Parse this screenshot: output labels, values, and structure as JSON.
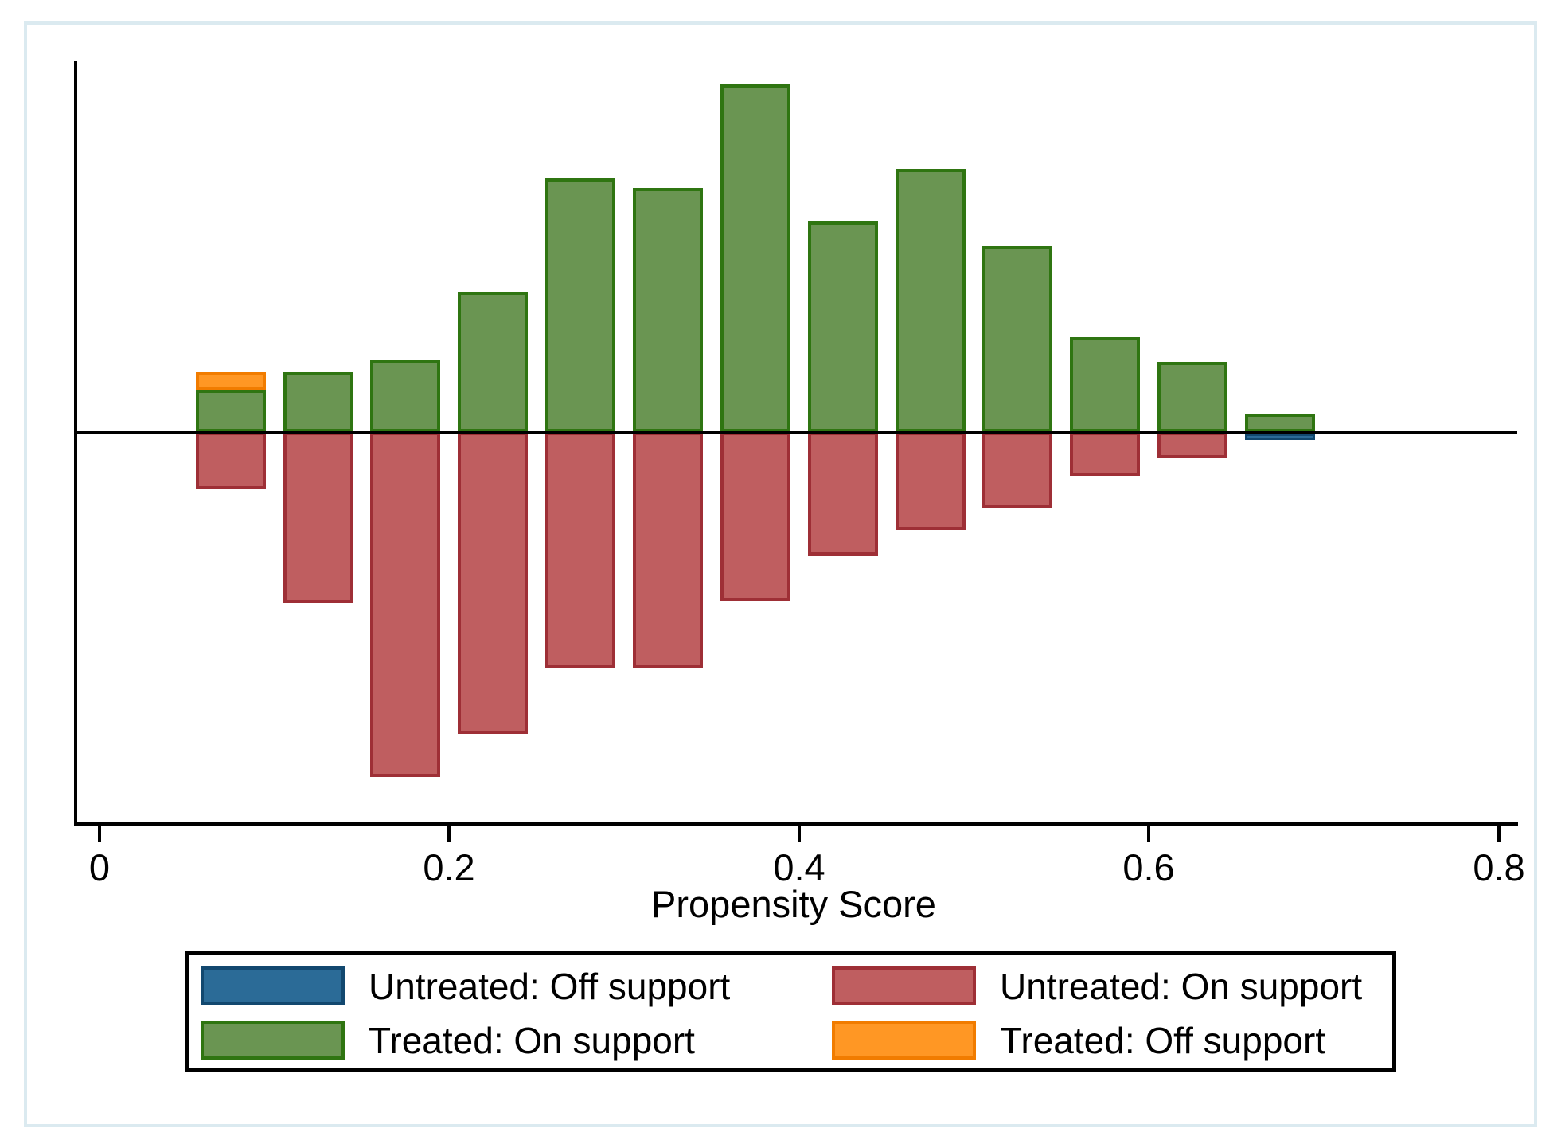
{
  "xaxis": {
    "label": "Propensity Score",
    "ticks": [
      {
        "value": 0,
        "label": "0"
      },
      {
        "value": 0.2,
        "label": "0.2"
      },
      {
        "value": 0.4,
        "label": "0.4"
      },
      {
        "value": 0.6,
        "label": "0.6"
      },
      {
        "value": 0.8,
        "label": "0.8"
      }
    ]
  },
  "legend": {
    "entries": [
      {
        "label": "Untreated: Off support",
        "color_key": "untreated_off"
      },
      {
        "label": "Untreated: On support",
        "color_key": "untreated_on"
      },
      {
        "label": "Treated: On support",
        "color_key": "treated_on"
      },
      {
        "label": "Treated: Off support",
        "color_key": "treated_off"
      }
    ]
  },
  "colors": {
    "treated_on": "#6a9552",
    "treated_on_border": "#2f7511",
    "untreated_on": "#bf5e60",
    "untreated_on_border": "#9e2f36",
    "treated_off": "#ff9724",
    "treated_off_border": "#f17c00",
    "untreated_off": "#2b6b97",
    "untreated_off_border": "#12486f",
    "axis": "#000000",
    "frame": "#dbeaf0"
  },
  "chart_data": {
    "type": "bar",
    "title": "",
    "xlabel": "Propensity Score",
    "ylabel": "",
    "grid": false,
    "legend_position": "bottom",
    "xlim": [
      0,
      0.82
    ],
    "bin_width": 0.05,
    "x_bin_centers": [
      0.075,
      0.125,
      0.175,
      0.225,
      0.275,
      0.325,
      0.375,
      0.425,
      0.475,
      0.525,
      0.575,
      0.625,
      0.675
    ],
    "orientation_note": "Treated series drawn upward from zero line; Untreated series drawn downward (mirrored histogram). Values are estimated densities; no y-axis ticks are shown in the figure.",
    "series": [
      {
        "name": "Treated: On support",
        "direction": "up",
        "values": [
          0.42,
          0.6,
          0.72,
          1.4,
          2.53,
          2.44,
          3.47,
          2.1,
          2.63,
          1.86,
          0.95,
          0.7,
          0.18
        ]
      },
      {
        "name": "Treated: Off support",
        "direction": "up-stacked-on-treated-on",
        "values": [
          0.18,
          0,
          0,
          0,
          0,
          0,
          0,
          0,
          0,
          0,
          0,
          0,
          0
        ]
      },
      {
        "name": "Untreated: On support",
        "direction": "down",
        "values": [
          0.56,
          1.71,
          3.44,
          3.01,
          2.35,
          2.35,
          1.68,
          1.23,
          0.98,
          0.75,
          0.44,
          0.25,
          0
        ]
      },
      {
        "name": "Untreated: Off support",
        "direction": "down",
        "values": [
          0,
          0,
          0,
          0,
          0,
          0,
          0,
          0,
          0,
          0,
          0,
          0,
          0.06
        ]
      }
    ]
  }
}
